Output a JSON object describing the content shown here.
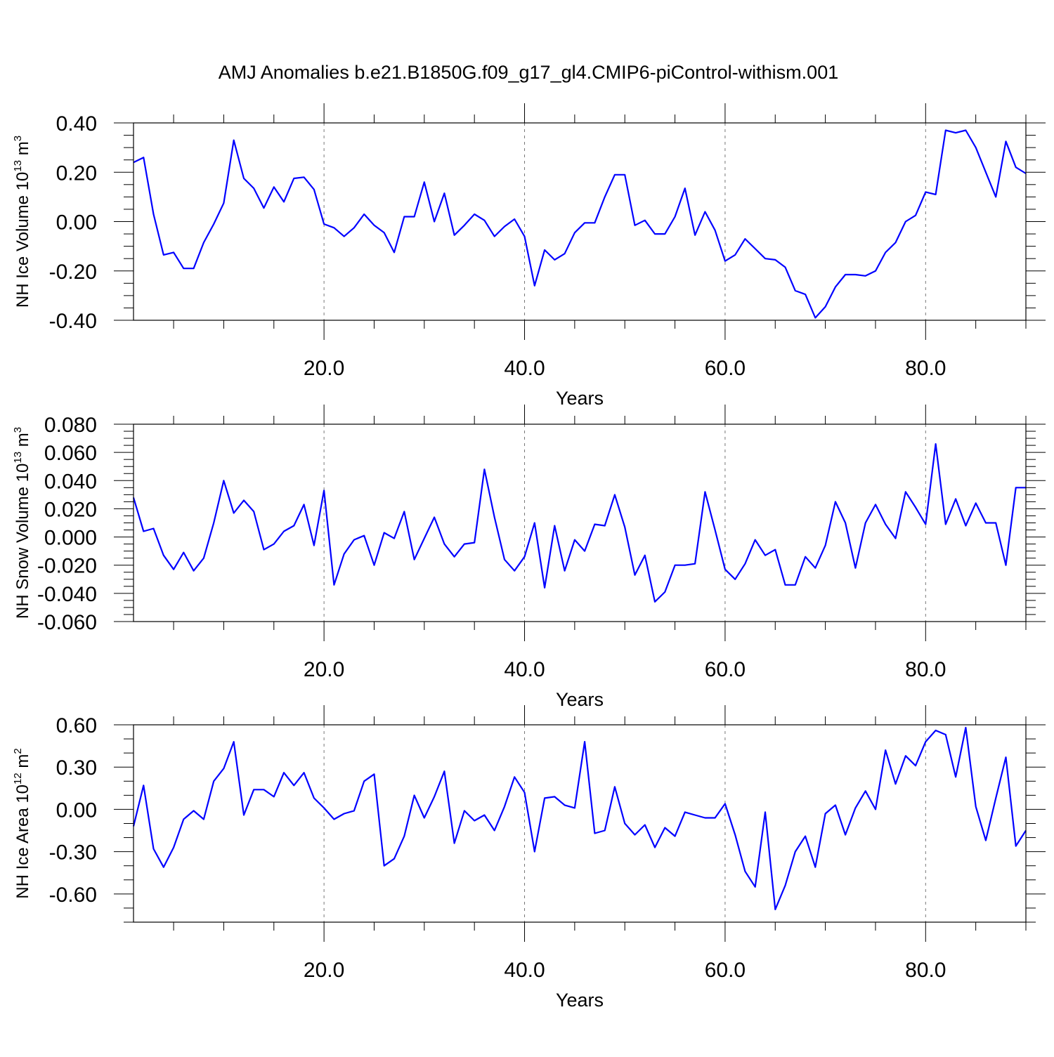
{
  "figure": {
    "title": "AMJ Anomalies b.e21.B1850G.f09_g17_gl4.CMIP6-piControl-withism.001"
  },
  "colors": {
    "series": "#0000ff",
    "axis": "#000000",
    "grid": "#777777"
  },
  "chart_data": [
    {
      "type": "line",
      "ylabel": {
        "text": "NH Ice Volume 10",
        "sup": "13",
        "unit": " m",
        "unit_sup": "3"
      },
      "xlabel": "Years",
      "xlim": [
        1,
        90
      ],
      "ylim": [
        -0.4,
        0.4
      ],
      "xticks": [
        20,
        40,
        60,
        80
      ],
      "xtick_labels": [
        "20.0",
        "40.0",
        "60.0",
        "80.0"
      ],
      "yticks": [
        -0.4,
        -0.2,
        0.0,
        0.2,
        0.4
      ],
      "ytick_labels": [
        "-0.40",
        "-0.20",
        "0.00",
        "0.20",
        "0.40"
      ],
      "x_minor_step": 5,
      "y_minor_step": 0.05,
      "grid": "vertical-dashed",
      "series": [
        {
          "x": [
            1,
            2,
            3,
            4,
            5,
            6,
            7,
            8,
            9,
            10,
            11,
            12,
            13,
            14,
            15,
            16,
            17,
            18,
            19,
            20,
            21,
            22,
            23,
            24,
            25,
            26,
            27,
            28,
            29,
            30,
            31,
            32,
            33,
            34,
            35,
            36,
            37,
            38,
            39,
            40,
            41,
            42,
            43,
            44,
            45,
            46,
            47,
            48,
            49,
            50,
            51,
            52,
            53,
            54,
            55,
            56,
            57,
            58,
            59,
            60,
            61,
            62,
            63,
            64,
            65,
            66,
            67,
            68,
            69,
            70,
            71,
            72,
            73,
            74,
            75,
            76,
            77,
            78,
            79,
            80,
            81,
            82,
            83,
            84,
            85,
            86,
            87,
            88,
            89,
            90
          ],
          "values": [
            0.24,
            0.26,
            0.03,
            -0.135,
            -0.125,
            -0.19,
            -0.19,
            -0.085,
            -0.01,
            0.075,
            0.33,
            0.175,
            0.135,
            0.055,
            0.14,
            0.08,
            0.175,
            0.18,
            0.13,
            -0.01,
            -0.025,
            -0.06,
            -0.025,
            0.03,
            -0.015,
            -0.045,
            -0.125,
            0.02,
            0.02,
            0.16,
            0.0,
            0.115,
            -0.055,
            -0.015,
            0.03,
            0.005,
            -0.06,
            -0.02,
            0.01,
            -0.06,
            -0.26,
            -0.115,
            -0.155,
            -0.13,
            -0.045,
            -0.005,
            -0.005,
            0.1,
            0.19,
            0.19,
            -0.015,
            0.005,
            -0.05,
            -0.05,
            0.02,
            0.135,
            -0.055,
            0.04,
            -0.035,
            -0.16,
            -0.135,
            -0.07,
            -0.11,
            -0.15,
            -0.155,
            -0.185,
            -0.28,
            -0.295,
            -0.39,
            -0.345,
            -0.265,
            -0.215,
            -0.215,
            -0.22,
            -0.2,
            -0.125,
            -0.085,
            0.0,
            0.025,
            0.12,
            0.11,
            0.37,
            0.36,
            0.37,
            0.3,
            0.2,
            0.1,
            0.325,
            0.22,
            0.195
          ]
        }
      ]
    },
    {
      "type": "line",
      "ylabel": {
        "text": "NH Snow Volume 10",
        "sup": "13",
        "unit": " m",
        "unit_sup": "3"
      },
      "xlabel": "Years",
      "xlim": [
        1,
        90
      ],
      "ylim": [
        -0.06,
        0.08
      ],
      "xticks": [
        20,
        40,
        60,
        80
      ],
      "xtick_labels": [
        "20.0",
        "40.0",
        "60.0",
        "80.0"
      ],
      "yticks": [
        -0.06,
        -0.04,
        -0.02,
        0.0,
        0.02,
        0.04,
        0.06,
        0.08
      ],
      "ytick_labels": [
        "-0.060",
        "-0.040",
        "-0.020",
        "0.000",
        "0.020",
        "0.040",
        "0.060",
        "0.080"
      ],
      "x_minor_step": 5,
      "y_minor_step": 0.005,
      "grid": "vertical-dashed",
      "series": [
        {
          "x": [
            1,
            2,
            3,
            4,
            5,
            6,
            7,
            8,
            9,
            10,
            11,
            12,
            13,
            14,
            15,
            16,
            17,
            18,
            19,
            20,
            21,
            22,
            23,
            24,
            25,
            26,
            27,
            28,
            29,
            30,
            31,
            32,
            33,
            34,
            35,
            36,
            37,
            38,
            39,
            40,
            41,
            42,
            43,
            44,
            45,
            46,
            47,
            48,
            49,
            50,
            51,
            52,
            53,
            54,
            55,
            56,
            57,
            58,
            59,
            60,
            61,
            62,
            63,
            64,
            65,
            66,
            67,
            68,
            69,
            70,
            71,
            72,
            73,
            74,
            75,
            76,
            77,
            78,
            79,
            80,
            81,
            82,
            83,
            84,
            85,
            86,
            87,
            88,
            89,
            90
          ],
          "values": [
            0.028,
            0.004,
            0.006,
            -0.013,
            -0.023,
            -0.011,
            -0.024,
            -0.015,
            0.01,
            0.04,
            0.017,
            0.026,
            0.018,
            -0.009,
            -0.005,
            0.004,
            0.008,
            0.023,
            -0.006,
            0.033,
            -0.034,
            -0.012,
            -0.002,
            0.001,
            -0.02,
            0.003,
            -0.001,
            0.018,
            -0.016,
            -0.001,
            0.014,
            -0.005,
            -0.014,
            -0.005,
            -0.004,
            0.048,
            0.014,
            -0.016,
            -0.024,
            -0.014,
            0.01,
            -0.036,
            0.008,
            -0.024,
            -0.002,
            -0.01,
            0.009,
            0.008,
            0.03,
            0.007,
            -0.027,
            -0.013,
            -0.046,
            -0.039,
            -0.02,
            -0.02,
            -0.019,
            0.032,
            0.005,
            -0.023,
            -0.03,
            -0.019,
            -0.002,
            -0.013,
            -0.009,
            -0.034,
            -0.034,
            -0.014,
            -0.022,
            -0.006,
            0.025,
            0.01,
            -0.022,
            0.01,
            0.023,
            0.009,
            -0.001,
            0.032,
            0.021,
            0.009,
            0.066,
            0.009,
            0.027,
            0.008,
            0.024,
            0.01,
            0.01,
            -0.02,
            0.035,
            0.035
          ]
        }
      ]
    },
    {
      "type": "line",
      "ylabel": {
        "text": "NH Ice Area 10",
        "sup": "12",
        "unit": " m",
        "unit_sup": "2"
      },
      "xlabel": "Years",
      "xlim": [
        1,
        90
      ],
      "ylim": [
        -0.8,
        0.6
      ],
      "xticks": [
        20,
        40,
        60,
        80
      ],
      "xtick_labels": [
        "20.0",
        "40.0",
        "60.0",
        "80.0"
      ],
      "yticks": [
        -0.6,
        -0.3,
        0.0,
        0.3,
        0.6
      ],
      "ytick_labels": [
        "-0.60",
        "-0.30",
        "0.00",
        "0.30",
        "0.60"
      ],
      "x_minor_step": 5,
      "y_minor_step": 0.1,
      "grid": "vertical-dashed",
      "series": [
        {
          "x": [
            1,
            2,
            3,
            4,
            5,
            6,
            7,
            8,
            9,
            10,
            11,
            12,
            13,
            14,
            15,
            16,
            17,
            18,
            19,
            20,
            21,
            22,
            23,
            24,
            25,
            26,
            27,
            28,
            29,
            30,
            31,
            32,
            33,
            34,
            35,
            36,
            37,
            38,
            39,
            40,
            41,
            42,
            43,
            44,
            45,
            46,
            47,
            48,
            49,
            50,
            51,
            52,
            53,
            54,
            55,
            56,
            57,
            58,
            59,
            60,
            61,
            62,
            63,
            64,
            65,
            66,
            67,
            68,
            69,
            70,
            71,
            72,
            73,
            74,
            75,
            76,
            77,
            78,
            79,
            80,
            81,
            82,
            83,
            84,
            85,
            86,
            87,
            88,
            89,
            90
          ],
          "values": [
            -0.12,
            0.17,
            -0.28,
            -0.41,
            -0.27,
            -0.07,
            -0.01,
            -0.07,
            0.2,
            0.29,
            0.48,
            -0.04,
            0.14,
            0.14,
            0.09,
            0.26,
            0.17,
            0.26,
            0.08,
            0.01,
            -0.07,
            -0.03,
            -0.01,
            0.2,
            0.25,
            -0.4,
            -0.35,
            -0.19,
            0.1,
            -0.06,
            0.09,
            0.27,
            -0.24,
            -0.01,
            -0.08,
            -0.04,
            -0.15,
            0.02,
            0.23,
            0.12,
            -0.3,
            0.08,
            0.09,
            0.03,
            0.01,
            0.48,
            -0.17,
            -0.15,
            0.16,
            -0.1,
            -0.18,
            -0.11,
            -0.27,
            -0.13,
            -0.19,
            -0.02,
            -0.04,
            -0.06,
            -0.06,
            0.04,
            -0.18,
            -0.44,
            -0.55,
            -0.02,
            -0.71,
            -0.54,
            -0.3,
            -0.19,
            -0.41,
            -0.03,
            0.03,
            -0.18,
            0.01,
            0.13,
            0.0,
            0.42,
            0.18,
            0.38,
            0.31,
            0.48,
            0.56,
            0.53,
            0.23,
            0.58,
            0.02,
            -0.22,
            0.08,
            0.37,
            -0.26,
            -0.15
          ]
        }
      ]
    }
  ]
}
